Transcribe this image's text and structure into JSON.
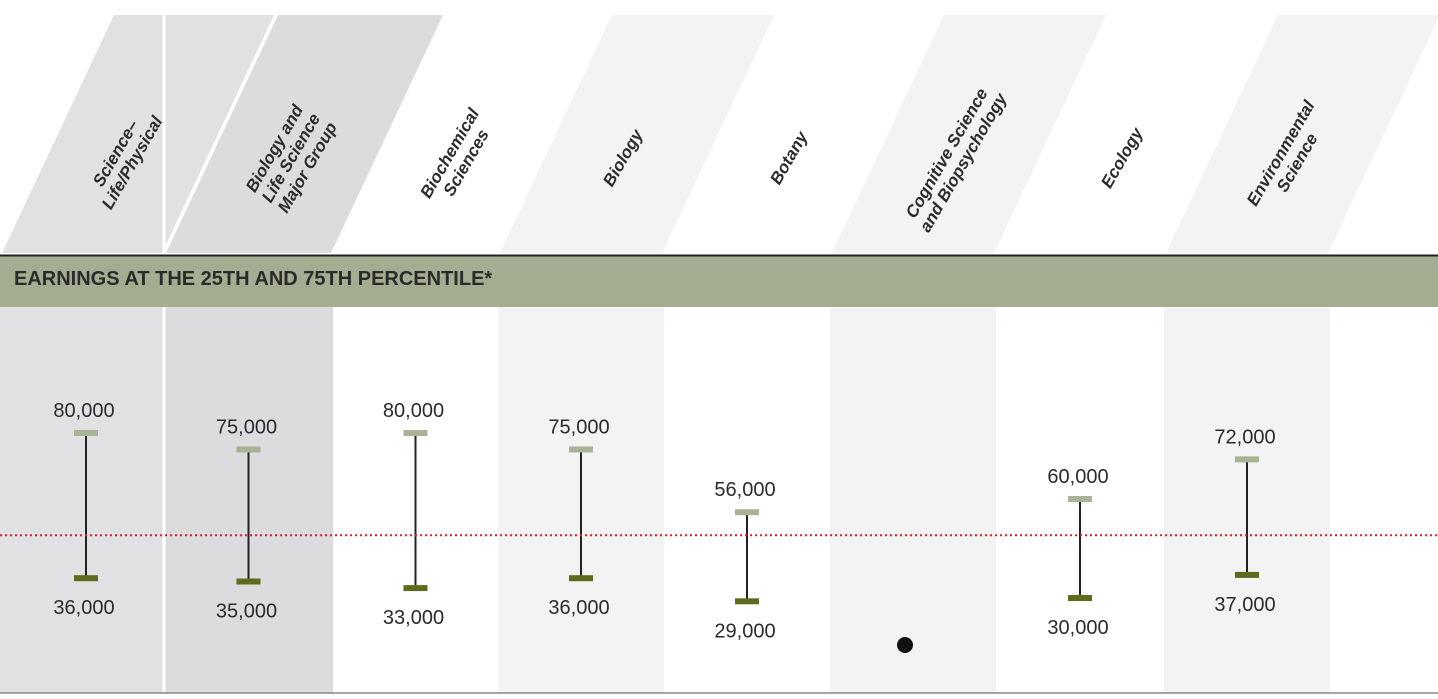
{
  "chart_data": {
    "type": "range",
    "title": "EARNINGS AT THE 25TH AND 75TH PERCENTILE*",
    "categories": [
      "Science–\nLife/Physical",
      "Biology and\nLife Science\nMajor Group",
      "Biochemical\nSciences",
      "Biology",
      "Botany",
      "Cognitive Science\nand Biopsychology",
      "Ecology",
      "Environmental\nScience"
    ],
    "series": [
      {
        "color": "#a7b394",
        "values": [
          80000,
          75000,
          80000,
          75000,
          56000,
          null,
          60000,
          72000
        ],
        "value_labels": [
          "80,000",
          "75,000",
          "80,000",
          "75,000",
          "56,000",
          null,
          "60,000",
          "72,000"
        ]
      },
      {
        "color": "#5e6b1f",
        "values": [
          36000,
          35000,
          33000,
          36000,
          29000,
          null,
          30000,
          37000
        ],
        "value_labels": [
          "36,000",
          "35,000",
          "33,000",
          "36,000",
          "29,000",
          null,
          "30,000",
          "37,000"
        ]
      }
    ],
    "reference_line": {
      "value": 49000,
      "color": "#e02020"
    },
    "ylim": [
      20000,
      90000
    ]
  }
}
